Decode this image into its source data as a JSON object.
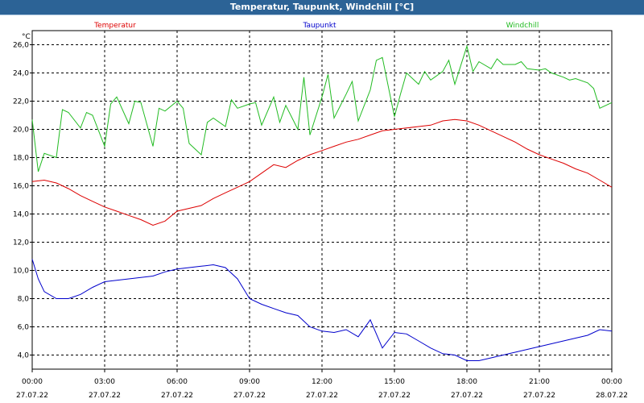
{
  "window": {
    "title": "Temperatur, Taupunkt, Windchill [°C]"
  },
  "chart_data": {
    "type": "line",
    "title": "Temperatur, Taupunkt, Windchill [°C]",
    "ylabel": "°C",
    "ylim": [
      3.0,
      27.0
    ],
    "yticks": [
      "26,0",
      "24,0",
      "22,0",
      "20,0",
      "18,0",
      "16,0",
      "14,0",
      "12,0",
      "10,0",
      "8,0",
      "6,0",
      "4,0"
    ],
    "ytick_values": [
      26,
      24,
      22,
      20,
      18,
      16,
      14,
      12,
      10,
      8,
      6,
      4
    ],
    "xlim": [
      0,
      24
    ],
    "xticks": [
      {
        "hour": 0,
        "time": "00:00",
        "date": "27.07.22"
      },
      {
        "hour": 3,
        "time": "03:00",
        "date": "27.07.22"
      },
      {
        "hour": 6,
        "time": "06:00",
        "date": "27.07.22"
      },
      {
        "hour": 9,
        "time": "09:00",
        "date": "27.07.22"
      },
      {
        "hour": 12,
        "time": "12:00",
        "date": "27.07.22"
      },
      {
        "hour": 15,
        "time": "15:00",
        "date": "27.07.22"
      },
      {
        "hour": 18,
        "time": "18:00",
        "date": "27.07.22"
      },
      {
        "hour": 21,
        "time": "21:00",
        "date": "27.07.22"
      },
      {
        "hour": 24,
        "time": "00:00",
        "date": "28.07.22"
      }
    ],
    "grid": true,
    "legend_position": "top",
    "series": [
      {
        "name": "Temperatur",
        "color": "#dd0000",
        "x": [
          0,
          0.5,
          1,
          1.5,
          2,
          2.5,
          3,
          3.5,
          4,
          4.5,
          5,
          5.5,
          6,
          6.5,
          7,
          7.5,
          8,
          8.5,
          9,
          9.5,
          10,
          10.5,
          11,
          11.5,
          12,
          12.5,
          13,
          13.5,
          14,
          14.5,
          15,
          15.5,
          16,
          16.5,
          17,
          17.5,
          18,
          18.5,
          19,
          19.5,
          20,
          20.5,
          21,
          21.5,
          22,
          22.5,
          23,
          23.5,
          24
        ],
        "values": [
          16.3,
          16.4,
          16.2,
          15.8,
          15.3,
          14.9,
          14.5,
          14.2,
          13.9,
          13.6,
          13.2,
          13.5,
          14.2,
          14.4,
          14.6,
          15.1,
          15.5,
          15.9,
          16.3,
          16.9,
          17.5,
          17.3,
          17.8,
          18.2,
          18.5,
          18.8,
          19.1,
          19.3,
          19.6,
          19.9,
          20.0,
          20.1,
          20.2,
          20.3,
          20.6,
          20.7,
          20.6,
          20.3,
          19.9,
          19.5,
          19.1,
          18.6,
          18.2,
          17.9,
          17.6,
          17.2,
          16.9,
          16.4,
          15.9
        ]
      },
      {
        "name": "Taupunkt",
        "color": "#0000cc",
        "x": [
          0,
          0.25,
          0.5,
          1,
          1.5,
          2,
          2.5,
          3,
          3.5,
          4,
          4.5,
          5,
          5.5,
          6,
          6.5,
          7,
          7.5,
          8,
          8.5,
          9,
          9.5,
          10,
          10.5,
          11,
          11.5,
          12,
          12.5,
          13,
          13.5,
          14,
          14.5,
          15,
          15.5,
          16,
          16.5,
          17,
          17.5,
          18,
          18.5,
          19,
          19.5,
          20,
          20.5,
          21,
          21.5,
          22,
          22.5,
          23,
          23.5,
          24
        ],
        "values": [
          10.8,
          9.4,
          8.5,
          8.0,
          8.0,
          8.3,
          8.8,
          9.2,
          9.3,
          9.4,
          9.5,
          9.6,
          9.9,
          10.1,
          10.2,
          10.3,
          10.4,
          10.2,
          9.4,
          8.0,
          7.6,
          7.3,
          7.0,
          6.8,
          6.0,
          5.7,
          5.6,
          5.8,
          5.3,
          6.5,
          4.5,
          5.6,
          5.5,
          5.0,
          4.5,
          4.1,
          4.0,
          3.6,
          3.6,
          3.8,
          4.0,
          4.2,
          4.4,
          4.6,
          4.8,
          5.0,
          5.2,
          5.4,
          5.8,
          5.7
        ]
      },
      {
        "name": "Windchill",
        "color": "#22bb22",
        "x": [
          0,
          0.25,
          0.5,
          1,
          1.25,
          1.5,
          2,
          2.25,
          2.5,
          3,
          3.25,
          3.5,
          4,
          4.25,
          4.5,
          5,
          5.25,
          5.5,
          6,
          6.25,
          6.5,
          7,
          7.25,
          7.5,
          8,
          8.25,
          8.5,
          9,
          9.25,
          9.5,
          10,
          10.25,
          10.5,
          11,
          11.25,
          11.5,
          12,
          12.25,
          12.5,
          13,
          13.25,
          13.5,
          14,
          14.25,
          14.5,
          15,
          15.25,
          15.5,
          16,
          16.25,
          16.5,
          17,
          17.25,
          17.5,
          18,
          18.25,
          18.5,
          19,
          19.25,
          19.5,
          20,
          20.25,
          20.5,
          21,
          21.25,
          21.5,
          22,
          22.25,
          22.5,
          23,
          23.25,
          23.5,
          24
        ],
        "values": [
          20.7,
          17.0,
          18.3,
          18.0,
          21.4,
          21.2,
          20.1,
          21.2,
          21.0,
          18.8,
          21.8,
          22.3,
          20.4,
          22.0,
          21.9,
          18.8,
          21.5,
          21.3,
          22.0,
          21.5,
          19.0,
          18.2,
          20.5,
          20.8,
          20.2,
          22.1,
          21.5,
          21.8,
          21.9,
          20.3,
          22.3,
          20.5,
          21.7,
          20.0,
          23.7,
          19.6,
          22.3,
          23.9,
          20.8,
          22.5,
          23.4,
          20.6,
          22.8,
          24.9,
          25.1,
          20.9,
          22.5,
          24.0,
          23.2,
          24.1,
          23.5,
          24.1,
          24.9,
          23.2,
          25.9,
          24.1,
          24.8,
          24.3,
          25.0,
          24.6,
          24.6,
          24.8,
          24.3,
          24.2,
          24.3,
          24.0,
          23.7,
          23.5,
          23.6,
          23.3,
          22.9,
          21.5,
          21.9
        ]
      }
    ]
  }
}
